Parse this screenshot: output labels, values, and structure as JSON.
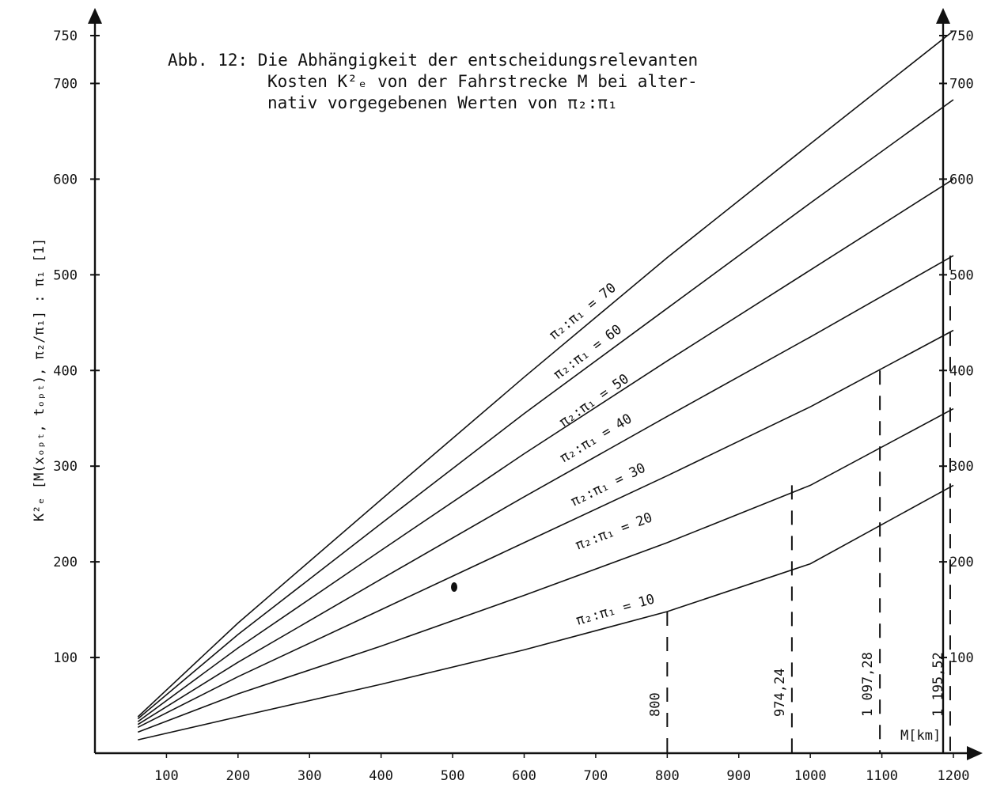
{
  "chart_data": {
    "type": "line",
    "title_lines": [
      "Abb. 12: Die Abhängigkeit der entscheidungsrelevanten",
      "Kosten K²ₑ von der Fahrstrecke M bei alter-",
      "nativ vorgegebenen Werten von π₂:π₁"
    ],
    "ylabel": "K²ₑ [M(xₒₚₜ, tₒₚₜ), π₂/π₁] : π₁ [1]",
    "xlabel": "M[km]",
    "xlim": [
      0,
      1200
    ],
    "ylim": [
      0,
      750
    ],
    "x_ticks": [
      "100",
      "200",
      "300",
      "400",
      "500",
      "600",
      "700",
      "800",
      "900",
      "1000",
      "1100",
      "1200"
    ],
    "y_ticks": [
      "100",
      "200",
      "300",
      "400",
      "500",
      "600",
      "700",
      "750"
    ],
    "y_ticks_right": [
      "100",
      "200",
      "300",
      "400",
      "500",
      "600",
      "700",
      "750"
    ],
    "series": [
      {
        "name": "π₂:π₁ = 10",
        "x": [
          60,
          200,
          400,
          600,
          800,
          1000,
          1200
        ],
        "y": [
          14,
          38,
          72,
          108,
          148,
          198,
          280
        ]
      },
      {
        "name": "π₂:π₁ = 20",
        "x": [
          60,
          200,
          400,
          600,
          800,
          1000,
          1200
        ],
        "y": [
          22,
          62,
          112,
          165,
          220,
          280,
          360
        ]
      },
      {
        "name": "π₂:π₁ = 30",
        "x": [
          60,
          200,
          400,
          600,
          800,
          1000,
          1200
        ],
        "y": [
          27,
          80,
          150,
          220,
          290,
          362,
          442
        ]
      },
      {
        "name": "π₂:π₁ = 40",
        "x": [
          60,
          200,
          400,
          600,
          800,
          1000,
          1200
        ],
        "y": [
          30,
          95,
          182,
          268,
          352,
          435,
          520
        ]
      },
      {
        "name": "π₂:π₁ = 50",
        "x": [
          60,
          200,
          400,
          600,
          800,
          1000,
          1200
        ],
        "y": [
          33,
          110,
          212,
          313,
          410,
          505,
          600
        ]
      },
      {
        "name": "π₂:π₁ = 60",
        "x": [
          60,
          200,
          400,
          600,
          800,
          1000,
          1200
        ],
        "y": [
          36,
          124,
          240,
          355,
          465,
          575,
          683
        ]
      },
      {
        "name": "π₂:π₁ = 70",
        "x": [
          60,
          200,
          400,
          600,
          800,
          1000,
          1200
        ],
        "y": [
          38,
          136,
          265,
          393,
          518,
          637,
          755
        ]
      }
    ],
    "reference_lines": [
      {
        "label": "800",
        "x": 800,
        "y": 148
      },
      {
        "label": "974,24",
        "x": 974.24,
        "y": 280
      },
      {
        "label": "1 097,28",
        "x": 1097.28,
        "y": 400
      },
      {
        "label": "1 195,52",
        "x": 1195.52,
        "y": 520
      }
    ],
    "grid": false,
    "legend": "none"
  }
}
